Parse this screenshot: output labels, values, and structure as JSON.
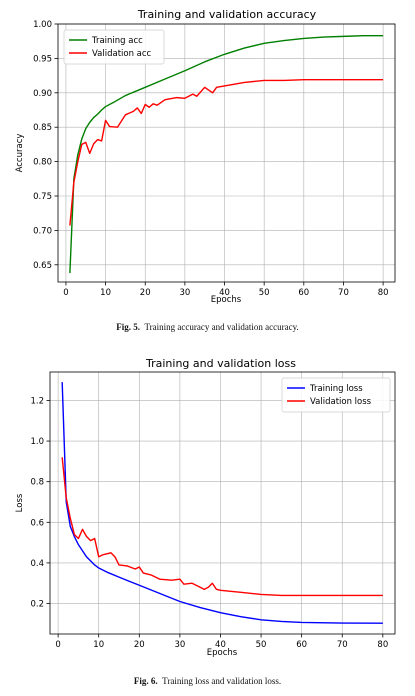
{
  "charts": [
    {
      "type": "line",
      "title": "Training and validation accuracy",
      "xlabel": "Epochs",
      "ylabel": "Accuracy",
      "xlim": [
        -2,
        83
      ],
      "ylim": [
        0.625,
        1.0
      ],
      "xticks": [
        0,
        10,
        20,
        30,
        40,
        50,
        60,
        70,
        80
      ],
      "yticks": [
        0.65,
        0.7,
        0.75,
        0.8,
        0.85,
        0.9,
        0.95,
        1.0
      ],
      "ytick_labels": [
        "0.65",
        "0.70",
        "0.75",
        "0.80",
        "0.85",
        "0.90",
        "0.95",
        "1.00"
      ],
      "grid": true,
      "legend": "top-left",
      "series": [
        {
          "name": "Training acc",
          "color": "#008000",
          "points": [
            [
              1,
              0.638
            ],
            [
              2,
              0.775
            ],
            [
              3,
              0.81
            ],
            [
              4,
              0.833
            ],
            [
              5,
              0.848
            ],
            [
              6,
              0.857
            ],
            [
              7,
              0.864
            ],
            [
              8,
              0.869
            ],
            [
              9,
              0.875
            ],
            [
              10,
              0.88
            ],
            [
              12,
              0.886
            ],
            [
              15,
              0.896
            ],
            [
              20,
              0.908
            ],
            [
              25,
              0.92
            ],
            [
              30,
              0.932
            ],
            [
              35,
              0.945
            ],
            [
              40,
              0.956
            ],
            [
              45,
              0.965
            ],
            [
              50,
              0.972
            ],
            [
              55,
              0.976
            ],
            [
              60,
              0.979
            ],
            [
              65,
              0.981
            ],
            [
              70,
              0.982
            ],
            [
              75,
              0.983
            ],
            [
              80,
              0.983
            ]
          ]
        },
        {
          "name": "Validation acc",
          "color": "#ff0000",
          "points": [
            [
              1,
              0.707
            ],
            [
              2,
              0.77
            ],
            [
              3,
              0.8
            ],
            [
              4,
              0.825
            ],
            [
              5,
              0.828
            ],
            [
              6,
              0.812
            ],
            [
              7,
              0.826
            ],
            [
              8,
              0.832
            ],
            [
              9,
              0.83
            ],
            [
              10,
              0.86
            ],
            [
              11,
              0.851
            ],
            [
              13,
              0.85
            ],
            [
              15,
              0.868
            ],
            [
              17,
              0.873
            ],
            [
              18,
              0.878
            ],
            [
              19,
              0.87
            ],
            [
              20,
              0.883
            ],
            [
              21,
              0.879
            ],
            [
              22,
              0.884
            ],
            [
              23,
              0.882
            ],
            [
              25,
              0.89
            ],
            [
              28,
              0.893
            ],
            [
              30,
              0.892
            ],
            [
              32,
              0.898
            ],
            [
              33,
              0.895
            ],
            [
              35,
              0.908
            ],
            [
              37,
              0.9
            ],
            [
              38,
              0.908
            ],
            [
              40,
              0.91
            ],
            [
              45,
              0.915
            ],
            [
              50,
              0.918
            ],
            [
              55,
              0.918
            ],
            [
              60,
              0.919
            ],
            [
              70,
              0.919
            ],
            [
              80,
              0.919
            ]
          ]
        }
      ]
    },
    {
      "type": "line",
      "title": "Training and validation loss",
      "xlabel": "Epochs",
      "ylabel": "Loss",
      "xlim": [
        -2,
        83
      ],
      "ylim": [
        0.05,
        1.34
      ],
      "xticks": [
        0,
        10,
        20,
        30,
        40,
        50,
        60,
        70,
        80
      ],
      "yticks": [
        0.2,
        0.4,
        0.6,
        0.8,
        1.0,
        1.2
      ],
      "ytick_labels": [
        "0.2",
        "0.4",
        "0.6",
        "0.8",
        "1.0",
        "1.2"
      ],
      "grid": true,
      "legend": "top-right",
      "series": [
        {
          "name": "Training loss",
          "color": "#0000ff",
          "points": [
            [
              1,
              1.29
            ],
            [
              2,
              0.7
            ],
            [
              3,
              0.58
            ],
            [
              4,
              0.53
            ],
            [
              5,
              0.49
            ],
            [
              6,
              0.46
            ],
            [
              7,
              0.43
            ],
            [
              8,
              0.41
            ],
            [
              9,
              0.39
            ],
            [
              10,
              0.375
            ],
            [
              12,
              0.355
            ],
            [
              15,
              0.33
            ],
            [
              20,
              0.29
            ],
            [
              25,
              0.25
            ],
            [
              30,
              0.21
            ],
            [
              35,
              0.18
            ],
            [
              40,
              0.155
            ],
            [
              45,
              0.135
            ],
            [
              50,
              0.12
            ],
            [
              55,
              0.112
            ],
            [
              60,
              0.107
            ],
            [
              70,
              0.104
            ],
            [
              80,
              0.103
            ]
          ]
        },
        {
          "name": "Validation loss",
          "color": "#ff0000",
          "points": [
            [
              1,
              0.92
            ],
            [
              2,
              0.72
            ],
            [
              3,
              0.62
            ],
            [
              4,
              0.54
            ],
            [
              5,
              0.52
            ],
            [
              6,
              0.565
            ],
            [
              7,
              0.53
            ],
            [
              8,
              0.51
            ],
            [
              9,
              0.52
            ],
            [
              10,
              0.43
            ],
            [
              11,
              0.44
            ],
            [
              12,
              0.445
            ],
            [
              13,
              0.45
            ],
            [
              14,
              0.43
            ],
            [
              15,
              0.39
            ],
            [
              17,
              0.385
            ],
            [
              19,
              0.37
            ],
            [
              20,
              0.38
            ],
            [
              21,
              0.35
            ],
            [
              23,
              0.34
            ],
            [
              25,
              0.32
            ],
            [
              28,
              0.315
            ],
            [
              30,
              0.32
            ],
            [
              31,
              0.295
            ],
            [
              33,
              0.3
            ],
            [
              35,
              0.28
            ],
            [
              36,
              0.27
            ],
            [
              37,
              0.28
            ],
            [
              38,
              0.3
            ],
            [
              39,
              0.27
            ],
            [
              40,
              0.265
            ],
            [
              45,
              0.255
            ],
            [
              50,
              0.245
            ],
            [
              55,
              0.24
            ],
            [
              60,
              0.24
            ],
            [
              70,
              0.24
            ],
            [
              80,
              0.24
            ]
          ]
        }
      ]
    }
  ],
  "captions": [
    {
      "label": "Fig. 5.",
      "text": "Training accuracy and validation accuracy."
    },
    {
      "label": "Fig. 6.",
      "text": "Training loss and validation loss."
    }
  ]
}
